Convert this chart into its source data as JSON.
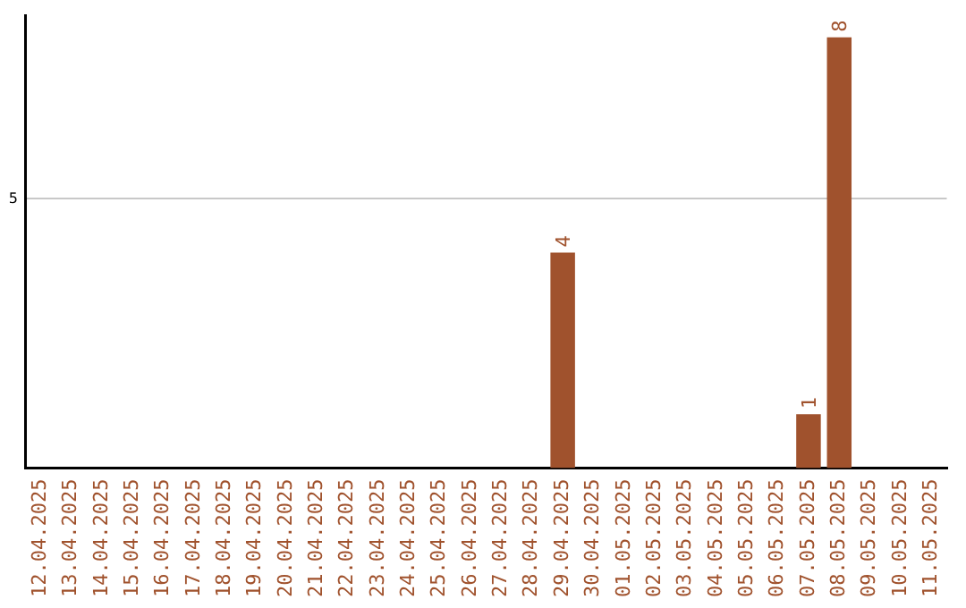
{
  "chart_data": {
    "type": "bar",
    "categories": [
      "12.04.2025",
      "13.04.2025",
      "14.04.2025",
      "15.04.2025",
      "16.04.2025",
      "17.04.2025",
      "18.04.2025",
      "19.04.2025",
      "20.04.2025",
      "21.04.2025",
      "22.04.2025",
      "23.04.2025",
      "24.04.2025",
      "25.04.2025",
      "26.04.2025",
      "27.04.2025",
      "28.04.2025",
      "29.04.2025",
      "30.04.2025",
      "01.05.2025",
      "02.05.2025",
      "03.05.2025",
      "04.05.2025",
      "05.05.2025",
      "06.05.2025",
      "07.05.2025",
      "08.05.2025",
      "09.05.2025",
      "10.05.2025",
      "11.05.2025"
    ],
    "values": [
      null,
      null,
      null,
      null,
      null,
      null,
      null,
      null,
      null,
      null,
      null,
      null,
      null,
      null,
      null,
      null,
      null,
      4,
      null,
      null,
      null,
      null,
      null,
      null,
      null,
      1,
      8,
      null,
      null,
      null
    ],
    "data_labels": true,
    "color": "#a0522d",
    "ylim": [
      0,
      8.4
    ],
    "yticks": [
      5
    ],
    "grid": "y",
    "legend": false
  }
}
